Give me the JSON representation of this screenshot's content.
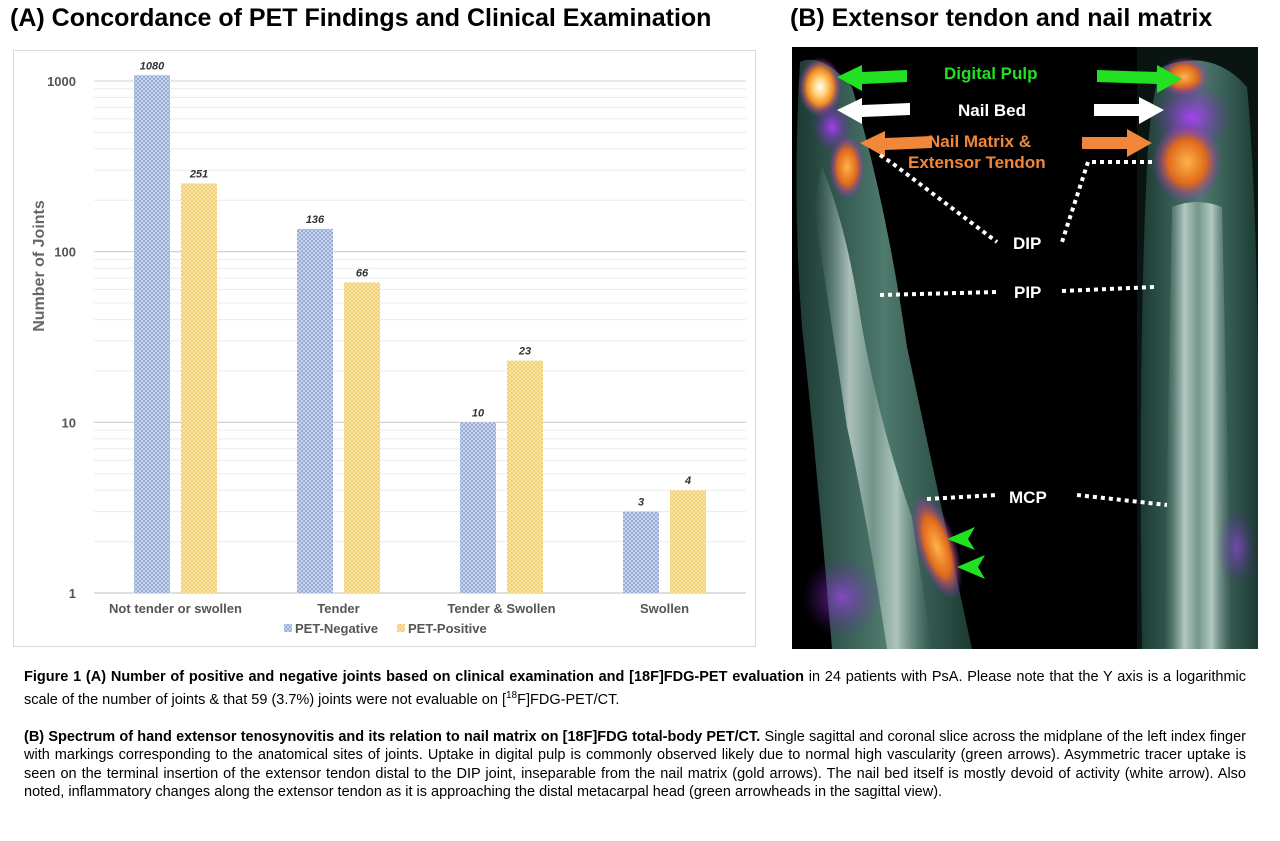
{
  "panel_a_title": "(A) Concordance of PET Findings and Clinical Examination",
  "panel_b_title": "(B) Extensor tendon and nail matrix",
  "chart_data": {
    "type": "bar",
    "title": "",
    "xlabel": "",
    "ylabel": "Number of Joints",
    "yscale": "log",
    "ylim": [
      1,
      1000
    ],
    "yticks": [
      "1",
      "10",
      "100",
      "1000"
    ],
    "grid": true,
    "legend_position": "bottom",
    "categories": [
      "Not tender or swollen",
      "Tender",
      "Tender & Swollen",
      "Swollen"
    ],
    "series": [
      {
        "name": "PET-Negative",
        "values": [
          1080,
          136,
          10,
          3
        ],
        "labels": [
          "1080",
          "136",
          "10",
          "3"
        ],
        "color": "#a9bcdf"
      },
      {
        "name": "PET-Positive",
        "values": [
          251,
          66,
          23,
          4
        ],
        "labels": [
          "251",
          "66",
          "23",
          "4"
        ],
        "color": "#f5d98a"
      }
    ]
  },
  "image_labels": {
    "digital_pulp": "Digital Pulp",
    "nail_bed": "Nail Bed",
    "nail_matrix_line1": "Nail Matrix &",
    "nail_matrix_line2": "Extensor Tendon",
    "dip": "DIP",
    "pip": "PIP",
    "mcp": "MCP"
  },
  "colors": {
    "green_arrow": "#22e022",
    "white_arrow": "#ffffff",
    "orange_arrow": "#f0873a"
  },
  "caption": {
    "a_bold": "Figure 1 (A) Number of positive and negative joints based on clinical examination and [18F]FDG-PET evaluation",
    "a_text1": " in 24 patients with PsA. Please note that the Y axis is a logarithmic scale of the number of joints & that 59 (3.7%) joints were not evaluable on [",
    "a_sup": "18",
    "a_text2": "F]FDG-PET/CT.",
    "b_bold": "(B) Spectrum of hand extensor tenosynovitis and its relation to nail matrix on [18F]FDG total-body PET/CT.",
    "b_text": " Single sagittal and coronal slice across the midplane of the left index finger with markings corresponding to the anatomical sites of joints. Uptake in digital pulp is commonly observed likely due to normal high vascularity (green arrows). Asymmetric tracer uptake is seen on the terminal insertion of the extensor tendon distal to the DIP joint, inseparable from the nail matrix (gold arrows). The nail bed itself is mostly devoid of activity (white arrow). Also noted, inflammatory changes along the extensor tendon as it is approaching the distal metacarpal head (green arrowheads in the sagittal view)."
  }
}
